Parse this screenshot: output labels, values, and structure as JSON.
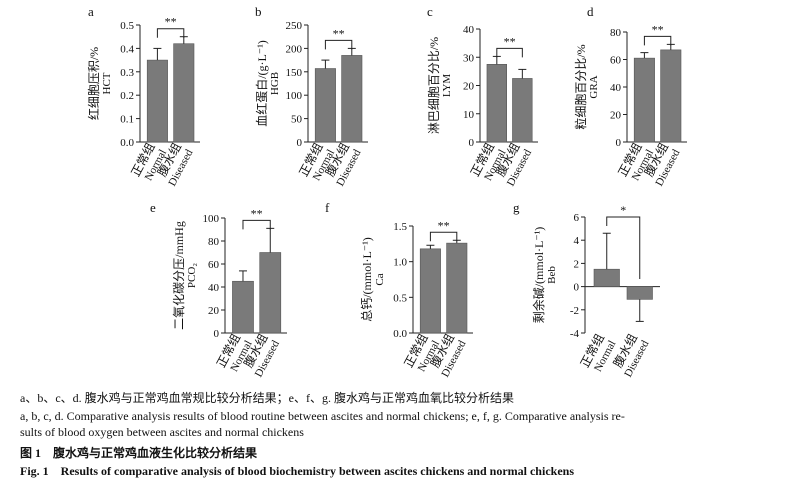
{
  "chart_data": [
    {
      "panel": "a",
      "type": "bar",
      "ylabel": "红细胞压积/%",
      "ylabel2": "HCT",
      "categories": [
        {
          "cn": "正常组",
          "en": "Normal"
        },
        {
          "cn": "腹水组",
          "en": "Diseased"
        }
      ],
      "values": [
        0.35,
        0.42
      ],
      "errors": [
        0.05,
        0.03
      ],
      "ylim": [
        0.0,
        0.5
      ],
      "yticks": [
        "0.0",
        "0.1",
        "0.2",
        "0.3",
        "0.4",
        "0.5"
      ],
      "tickvals": [
        0,
        0.1,
        0.2,
        0.3,
        0.4,
        0.5
      ],
      "sig": "**"
    },
    {
      "panel": "b",
      "type": "bar",
      "ylabel": "血红蛋白/(g·L⁻¹)",
      "ylabel2": "HGB",
      "categories": [
        {
          "cn": "正常组",
          "en": "Normal"
        },
        {
          "cn": "腹水组",
          "en": "Diseased"
        }
      ],
      "values": [
        157,
        185
      ],
      "errors": [
        18,
        15
      ],
      "ylim": [
        0,
        250
      ],
      "yticks": [
        "0",
        "50",
        "100",
        "150",
        "200",
        "250"
      ],
      "tickvals": [
        0,
        50,
        100,
        150,
        200,
        250
      ],
      "sig": "**"
    },
    {
      "panel": "c",
      "type": "bar",
      "ylabel": "淋巴细胞百分比/%",
      "ylabel2": "LYM",
      "categories": [
        {
          "cn": "正常组",
          "en": "Normal"
        },
        {
          "cn": "腹水组",
          "en": "Diseased"
        }
      ],
      "values": [
        27.5,
        22.5
      ],
      "errors": [
        2.8,
        3.2
      ],
      "ylim": [
        0,
        40
      ],
      "yticks": [
        "0",
        "10",
        "20",
        "30",
        "40"
      ],
      "tickvals": [
        0,
        10,
        20,
        30,
        40
      ],
      "sig": "**"
    },
    {
      "panel": "d",
      "type": "bar",
      "ylabel": "粒细胞百分比/%",
      "ylabel2": "GRA",
      "categories": [
        {
          "cn": "正常组",
          "en": "Normal"
        },
        {
          "cn": "腹水组",
          "en": "Diseased"
        }
      ],
      "values": [
        61,
        67
      ],
      "errors": [
        4,
        4
      ],
      "ylim": [
        0,
        80
      ],
      "yticks": [
        "0",
        "20",
        "40",
        "60",
        "80"
      ],
      "tickvals": [
        0,
        20,
        40,
        60,
        80
      ],
      "sig": "**"
    },
    {
      "panel": "e",
      "type": "bar",
      "ylabel": "二氧化碳分压/mmHg",
      "ylabel2": "PCO₂",
      "categories": [
        {
          "cn": "正常组",
          "en": "Normal"
        },
        {
          "cn": "腹水组",
          "en": "Diseased"
        }
      ],
      "values": [
        45,
        70
      ],
      "errors": [
        9,
        21
      ],
      "ylim": [
        0,
        100
      ],
      "yticks": [
        "0",
        "20",
        "40",
        "60",
        "80",
        "100"
      ],
      "tickvals": [
        0,
        20,
        40,
        60,
        80,
        100
      ],
      "sig": "**"
    },
    {
      "panel": "f",
      "type": "bar",
      "ylabel": "总钙/(mmol·L⁻¹)",
      "ylabel2": "Ca",
      "categories": [
        {
          "cn": "正常组",
          "en": "Normal"
        },
        {
          "cn": "腹水组",
          "en": "Diseased"
        }
      ],
      "values": [
        1.18,
        1.26
      ],
      "errors": [
        0.05,
        0.04
      ],
      "ylim": [
        0.0,
        1.5
      ],
      "yticks": [
        "0.0",
        "0.5",
        "1.0",
        "1.5"
      ],
      "tickvals": [
        0,
        0.5,
        1.0,
        1.5
      ],
      "sig": "**"
    },
    {
      "panel": "g",
      "type": "bar",
      "ylabel": "剩余碱/(mmol·L⁻¹)",
      "ylabel2": "Beb",
      "categories": [
        {
          "cn": "正常组",
          "en": "Normal"
        },
        {
          "cn": "腹水组",
          "en": "Diseased"
        }
      ],
      "values": [
        1.5,
        -1.1
      ],
      "errors": [
        3.1,
        1.9
      ],
      "ylim": [
        -4,
        6
      ],
      "yticks": [
        "-4",
        "-2",
        "0",
        "2",
        "4",
        "6"
      ],
      "tickvals": [
        -4,
        -2,
        0,
        2,
        4,
        6
      ],
      "sig": "*"
    }
  ],
  "colors": {
    "bar": "#7a7a7a",
    "axis": "#222222"
  },
  "caption": {
    "line1": "a、b、c、d. 腹水鸡与正常鸡血常规比较分析结果；e、f、g. 腹水鸡与正常鸡血氧比较分析结果",
    "line2": "a, b, c, d. Comparative analysis results of blood routine between ascites and normal chickens; e, f, g. Comparative analysis re-",
    "line3": "sults of blood oxygen between ascites and normal chickens",
    "title_cn": "图 1　腹水鸡与正常鸡血液生化比较分析结果",
    "title_en": "Fig. 1　Results of comparative analysis of blood biochemistry between ascites chickens and normal chickens"
  }
}
